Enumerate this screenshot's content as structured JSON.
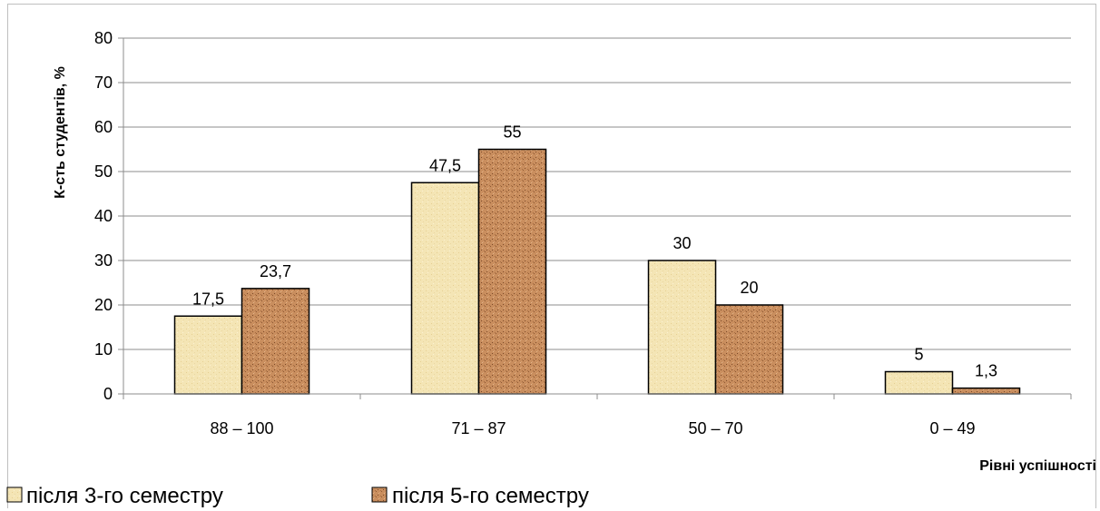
{
  "chart_data": {
    "type": "bar",
    "title": "",
    "xlabel": "Рівні успішності",
    "ylabel": "К-сть студентів, %",
    "categories": [
      "88 – 100",
      "71 – 87",
      "50 – 70",
      "0 – 49"
    ],
    "series": [
      {
        "name": "після 3-го семестру",
        "values": [
          17.5,
          47.5,
          30,
          5
        ],
        "labels": [
          "17,5",
          "47,5",
          "30",
          "5"
        ],
        "color": "#f5e6b8"
      },
      {
        "name": "після 5-го семестру",
        "values": [
          23.7,
          55,
          20,
          1.3
        ],
        "labels": [
          "23,7",
          "55",
          "20",
          "1,3"
        ],
        "color": "#c98a5a"
      }
    ],
    "ylim": [
      0,
      80
    ],
    "yticks": [
      0,
      10,
      20,
      30,
      40,
      50,
      60,
      70,
      80
    ],
    "grid": true,
    "legend": "bottom-left"
  }
}
